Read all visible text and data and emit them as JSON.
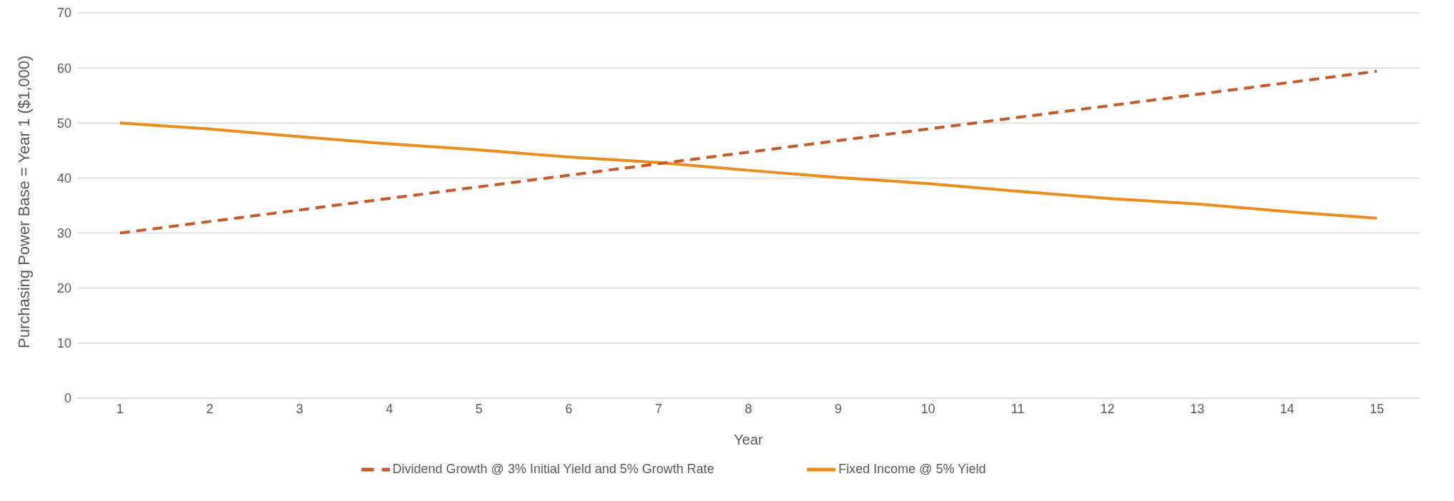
{
  "chart_data": {
    "type": "line",
    "xlabel": "Year",
    "ylabel": "Purchasing Power Base = Year 1 ($1,000)",
    "categories": [
      "1",
      "2",
      "3",
      "4",
      "5",
      "6",
      "7",
      "8",
      "9",
      "10",
      "11",
      "12",
      "13",
      "14",
      "15"
    ],
    "series": [
      {
        "name": "Fixed Income @ 5% Yield",
        "color": "#ed8b1d",
        "line_style": "solid",
        "values": [
          50,
          48.9,
          47.5,
          46.2,
          45.1,
          43.8,
          42.8,
          41.4,
          40.1,
          39.0,
          37.6,
          36.3,
          35.3,
          33.9,
          32.7
        ]
      },
      {
        "name": "Dividend Growth @ 3% Initial Yield and 5% Growth Rate",
        "color": "#c55a28",
        "line_style": "dashed",
        "values": [
          30,
          32.1,
          34.2,
          36.3,
          38.4,
          40.5,
          42.6,
          44.7,
          46.8,
          48.9,
          51.0,
          53.1,
          55.2,
          57.3,
          59.4
        ]
      }
    ],
    "ylim": [
      0,
      70
    ],
    "yticks": [
      0,
      10,
      20,
      30,
      40,
      50,
      60,
      70
    ],
    "grid": "y",
    "legend": "bottom",
    "marker": "none"
  }
}
